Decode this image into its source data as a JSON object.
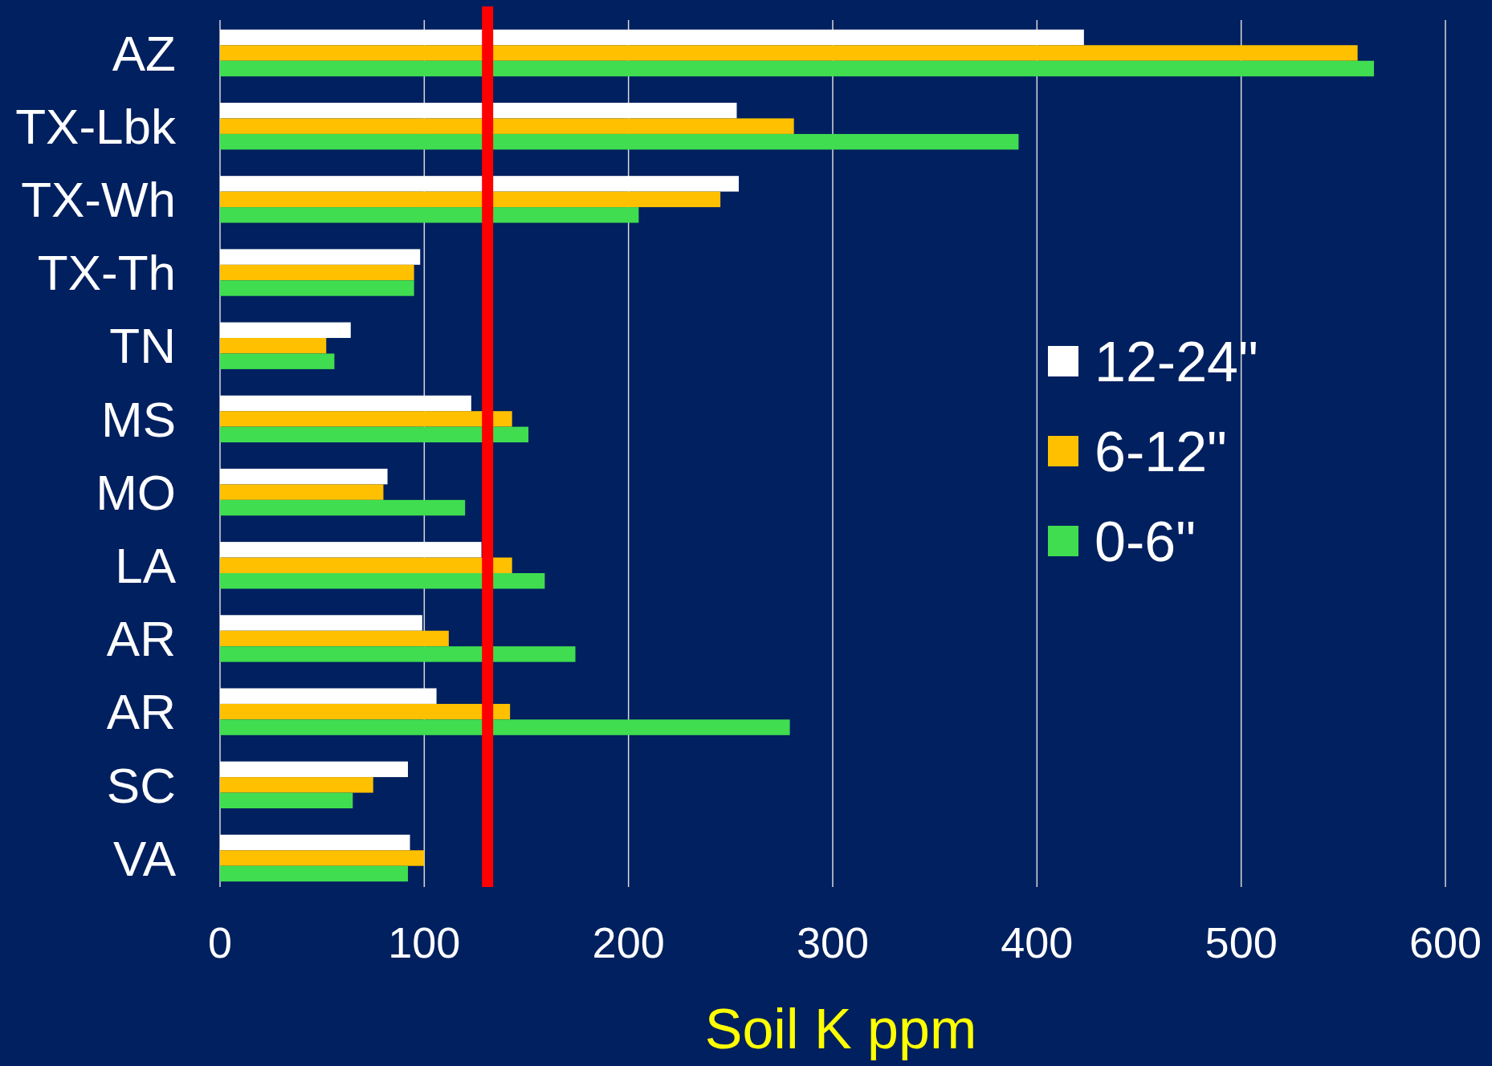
{
  "chart_data": {
    "type": "bar",
    "orientation": "horizontal",
    "xlabel": "Soil K ppm",
    "categories": [
      "AZ",
      "TX-Lbk",
      "TX-Wh",
      "TX-Th",
      "TN",
      "MS",
      "MO",
      "LA",
      "AR",
      "AR",
      "SC",
      "VA"
    ],
    "series": [
      {
        "name": "12-24\"",
        "color": "#ffffff",
        "values": [
          423,
          253,
          254,
          98,
          64,
          123,
          82,
          128,
          99,
          106,
          92,
          93
        ]
      },
      {
        "name": "6-12\"",
        "color": "#ffc000",
        "values": [
          557,
          281,
          245,
          95,
          52,
          143,
          80,
          143,
          112,
          142,
          75,
          100
        ]
      },
      {
        "name": "0-6\"",
        "color": "#40dd50",
        "values": [
          565,
          391,
          205,
          95,
          56,
          151,
          120,
          159,
          174,
          279,
          65,
          92
        ]
      }
    ],
    "xlim": [
      0,
      600
    ],
    "xticks": [
      0,
      100,
      200,
      300,
      400,
      500,
      600
    ],
    "grid": "x",
    "legend": "right",
    "ref_lines": [
      {
        "axis": "x",
        "value": 131,
        "color": "#ff0000"
      }
    ]
  }
}
